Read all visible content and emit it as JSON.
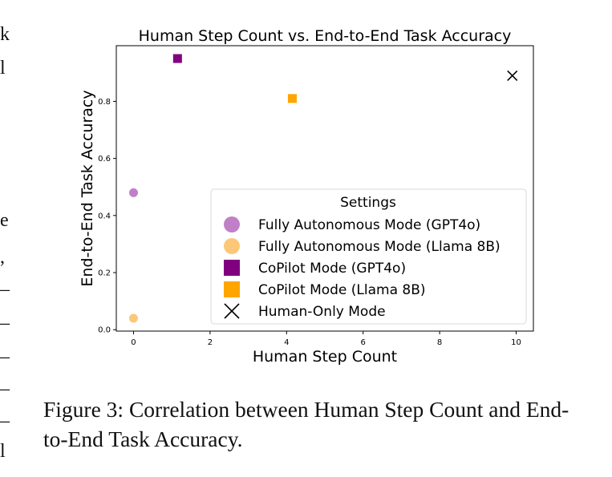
{
  "edge_glyphs": [
    "k",
    "l",
    "e",
    ",",
    "–",
    "–",
    "–",
    "–",
    "–",
    "l"
  ],
  "caption": "Figure 3: Correlation between Human Step Count and End-to-End Task Accuracy.",
  "chart_data": {
    "type": "scatter",
    "title": "Human Step Count vs. End-to-End Task Accuracy",
    "xlabel": "Human Step Count",
    "ylabel": "End-to-End Task Accuracy",
    "xlim": [
      -0.45,
      10.45
    ],
    "ylim": [
      -0.005,
      0.995
    ],
    "xticks": [
      0,
      2,
      4,
      6,
      8,
      10
    ],
    "xtick_labels": [
      "0",
      "2",
      "4",
      "6",
      "8",
      "10"
    ],
    "yticks": [
      0.0,
      0.2,
      0.4,
      0.6,
      0.8
    ],
    "ytick_labels": [
      "0.0",
      "0.2",
      "0.4",
      "0.6",
      "0.8"
    ],
    "grid": false,
    "legend": {
      "title": "Settings",
      "placement": "lower-right"
    },
    "series": [
      {
        "name": "Fully Autonomous Mode (GPT4o)",
        "marker": "circle",
        "color": "#c080c8",
        "points": [
          {
            "x": 0,
            "y": 0.48
          }
        ]
      },
      {
        "name": "Fully Autonomous Mode (Llama 8B)",
        "marker": "circle",
        "color": "#fcc878",
        "points": [
          {
            "x": 0,
            "y": 0.04
          }
        ]
      },
      {
        "name": "CoPilot Mode (GPT4o)",
        "marker": "square",
        "color": "#800080",
        "points": [
          {
            "x": 1.15,
            "y": 0.95
          }
        ]
      },
      {
        "name": "CoPilot Mode (Llama 8B)",
        "marker": "square",
        "color": "#ffa500",
        "points": [
          {
            "x": 4.15,
            "y": 0.81
          }
        ]
      },
      {
        "name": "Human-Only Mode",
        "marker": "x",
        "color": "#000000",
        "points": [
          {
            "x": 9.9,
            "y": 0.89
          }
        ]
      }
    ]
  }
}
